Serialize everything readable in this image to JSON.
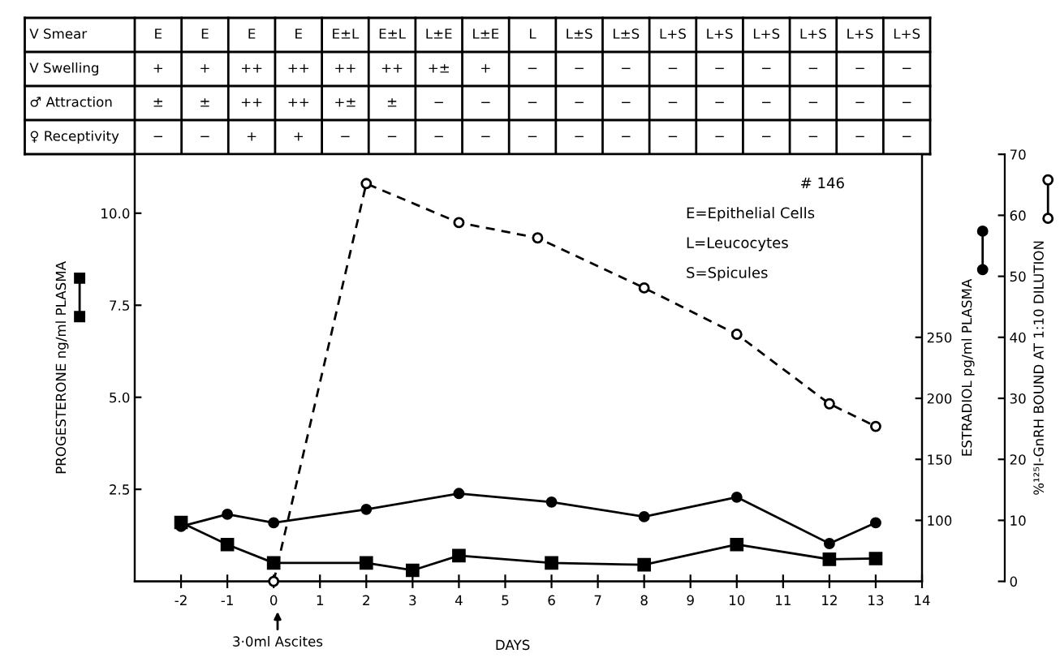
{
  "chart_data": [
    {
      "type": "heatmap",
      "categories": [
        null,
        null,
        null,
        null,
        null,
        null,
        null,
        null,
        null,
        null,
        null,
        null,
        null,
        null,
        null,
        null,
        null
      ],
      "y_categories": [
        "V Smear",
        "V Swelling",
        "♂ Attraction",
        "♀ Receptivity"
      ],
      "cells": [
        [
          null,
          null,
          null,
          null,
          null,
          null,
          null,
          null,
          null,
          null,
          null,
          null,
          null,
          null,
          null,
          null,
          null
        ],
        [
          null,
          null,
          null,
          null,
          null,
          null,
          null,
          null,
          null,
          null,
          null,
          null,
          null,
          null,
          null,
          null,
          null
        ],
        [
          null,
          null,
          null,
          null,
          null,
          null,
          null,
          null,
          null,
          null,
          null,
          null,
          null,
          null,
          null,
          null,
          null
        ],
        [
          null,
          null,
          null,
          null,
          null,
          null,
          null,
          null,
          null,
          null,
          null,
          null,
          null,
          null,
          null,
          null,
          null
        ]
      ],
      "cell_labels": [
        [
          "E",
          "E",
          "E",
          "E",
          "E±L",
          "E±L",
          "L±E",
          "L±E",
          "L",
          "L±S",
          "L±S",
          "L+S",
          "L+S",
          "L+S",
          "L+S",
          "L+S",
          "L+S"
        ],
        [
          "+",
          "+",
          "++",
          "++",
          "++",
          "++",
          "+±",
          "+",
          "−",
          "−",
          "−",
          "−",
          "−",
          "−",
          "−",
          "−",
          "−"
        ],
        [
          "±",
          "±",
          "++",
          "++",
          "+±",
          "±",
          "−",
          "−",
          "−",
          "−",
          "−",
          "−",
          "−",
          "−",
          "−",
          "−",
          "−"
        ],
        [
          "−",
          "−",
          "+",
          "+",
          "−",
          "−",
          "−",
          "−",
          "−",
          "−",
          "−",
          "−",
          "−",
          "−",
          "−",
          "−",
          "−"
        ]
      ]
    },
    {
      "type": "line",
      "xlabel": "DAYS",
      "ylabel": "PROGESTERONE ng/ml PLASMA",
      "y2label": "ESTRADIOL pg/ml PLASMA",
      "y3label": "%¹²⁵I-GnRH BOUND AT 1:10 DILUTION",
      "xlim": [
        -3,
        14
      ],
      "xticks": [
        -2,
        -1,
        0,
        1,
        2,
        3,
        4,
        5,
        6,
        7,
        8,
        9,
        10,
        11,
        12,
        13,
        14
      ],
      "ylim": [
        0,
        11.6
      ],
      "yticks": [
        {
          "value": 2.5,
          "label": "2.5"
        },
        {
          "value": 5,
          "label": "5.0"
        },
        {
          "value": 7.5,
          "label": "7.5"
        },
        {
          "value": 10,
          "label": "10.0"
        }
      ],
      "y2lim": [
        50,
        400
      ],
      "y2ticks": [
        100,
        150,
        200,
        250
      ],
      "y3lim": [
        0,
        70
      ],
      "y3ticks": [
        0,
        10,
        20,
        30,
        40,
        50,
        60,
        70
      ],
      "grid": false,
      "series": [
        {
          "color": "#000000",
          "marker": "square",
          "line_style": "solid",
          "x": [
            -2,
            -1,
            0,
            2,
            3,
            4,
            6,
            8,
            10,
            12,
            13
          ],
          "values": [
            1.6,
            1.0,
            0.5,
            0.5,
            0.3,
            0.7,
            0.5,
            0.45,
            1.0,
            0.6,
            0.62
          ]
        },
        {
          "color": "#000000",
          "marker": "circle",
          "line_style": "solid",
          "axis": "y2",
          "x": [
            -2,
            -1,
            0,
            2,
            4,
            6,
            8,
            10,
            12,
            13
          ],
          "values": [
            95,
            105,
            98,
            109,
            122,
            115,
            103,
            119,
            81,
            98
          ]
        },
        {
          "color": "#000000",
          "marker": "circle",
          "line_style": "dashed",
          "axis": "y3",
          "x": [
            0,
            2,
            4,
            5.7,
            8,
            10,
            12,
            13
          ],
          "values": [
            0,
            65.2,
            58.8,
            56.3,
            48.1,
            40.5,
            29.1,
            25.4
          ]
        }
      ],
      "annotations": [
        "# 146",
        "E=Epithelial Cells",
        "L=Leucocytes",
        "S=Spicules",
        "3·0ml Ascites"
      ]
    }
  ]
}
